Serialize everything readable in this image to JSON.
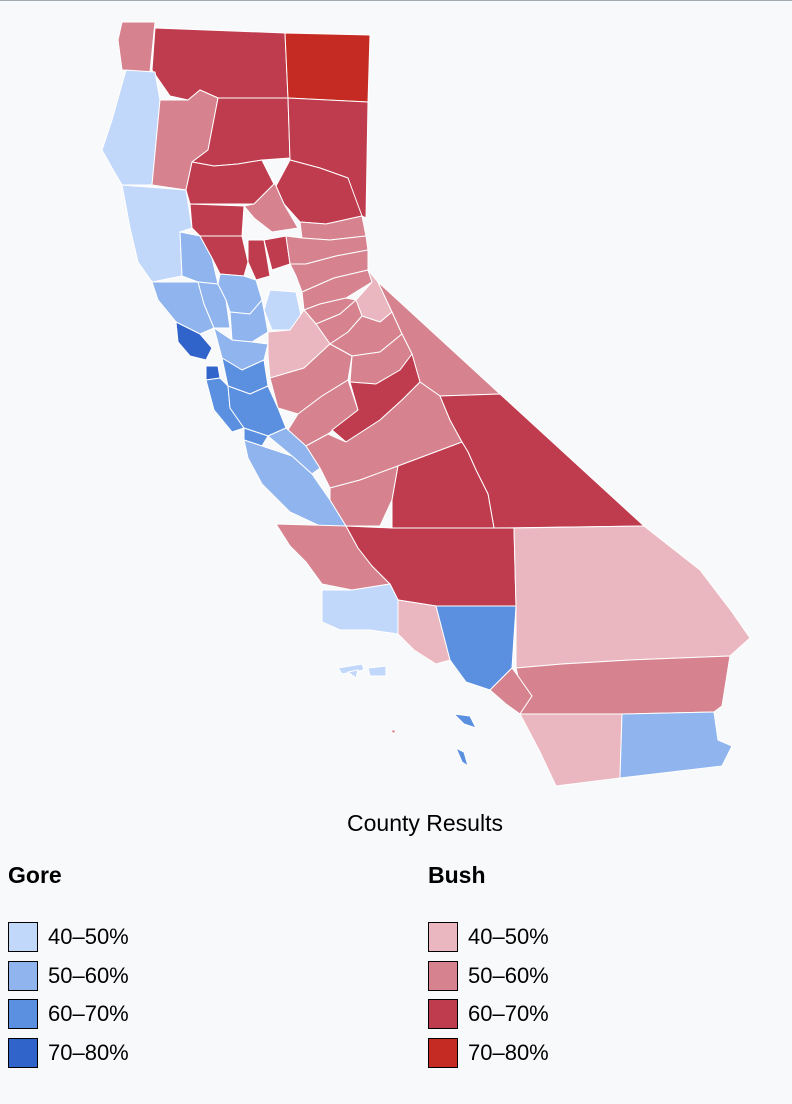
{
  "caption": "County Results",
  "colors": {
    "gore_40_50": "#c2d8fb",
    "gore_50_60": "#8fb4ee",
    "gore_60_70": "#5b8fe0",
    "gore_70_80": "#3064cb",
    "bush_40_50": "#eab7c0",
    "bush_50_60": "#d6838f",
    "bush_60_70": "#bf3b4e",
    "bush_70_80": "#c52a23"
  },
  "legend": {
    "gore": {
      "title": "Gore",
      "items": [
        {
          "label": "40–50%",
          "color": "#c2d8fb"
        },
        {
          "label": "50–60%",
          "color": "#8fb4ee"
        },
        {
          "label": "60–70%",
          "color": "#5b8fe0"
        },
        {
          "label": "70–80%",
          "color": "#3064cb"
        }
      ]
    },
    "bush": {
      "title": "Bush",
      "items": [
        {
          "label": "40–50%",
          "color": "#eab7c0"
        },
        {
          "label": "50–60%",
          "color": "#d6838f"
        },
        {
          "label": "60–70%",
          "color": "#bf3b4e"
        },
        {
          "label": "70–80%",
          "color": "#c52a23"
        }
      ]
    }
  }
}
